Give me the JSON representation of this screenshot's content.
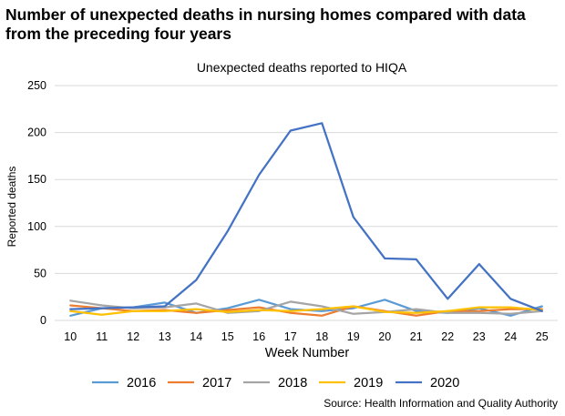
{
  "headline": "Number of unexpected deaths in nursing homes compared with data from the preceding four years",
  "source": "Source: Health Information and Quality Authority",
  "chart_data": {
    "type": "line",
    "title": "Unexpected deaths reported to HIQA",
    "xlabel": "Week Number",
    "ylabel": "Reported deaths",
    "x": [
      10,
      11,
      12,
      13,
      14,
      15,
      16,
      17,
      18,
      19,
      20,
      21,
      22,
      23,
      24,
      25
    ],
    "ylim": [
      0,
      250
    ],
    "yticks": [
      0,
      50,
      100,
      150,
      200,
      250
    ],
    "grid": true,
    "legend_position": "bottom",
    "series": [
      {
        "name": "2016",
        "color": "#5B9BD5",
        "values": [
          5,
          13,
          14,
          19,
          8,
          13,
          22,
          12,
          10,
          13,
          22,
          10,
          8,
          13,
          5,
          15
        ]
      },
      {
        "name": "2017",
        "color": "#ED7D31",
        "values": [
          16,
          13,
          10,
          11,
          8,
          11,
          14,
          8,
          5,
          15,
          10,
          5,
          10,
          10,
          12,
          12
        ]
      },
      {
        "name": "2018",
        "color": "#A5A5A5",
        "values": [
          21,
          16,
          13,
          14,
          18,
          8,
          10,
          20,
          15,
          7,
          9,
          12,
          8,
          8,
          7,
          10
        ]
      },
      {
        "name": "2019",
        "color": "#FFC000",
        "values": [
          10,
          6,
          10,
          10,
          12,
          9,
          11,
          10,
          12,
          15,
          9,
          8,
          10,
          14,
          14,
          11
        ]
      },
      {
        "name": "2020",
        "color": "#4472C4",
        "values": [
          12,
          13,
          14,
          15,
          43,
          95,
          155,
          202,
          210,
          110,
          66,
          65,
          23,
          60,
          23,
          10
        ]
      }
    ]
  }
}
